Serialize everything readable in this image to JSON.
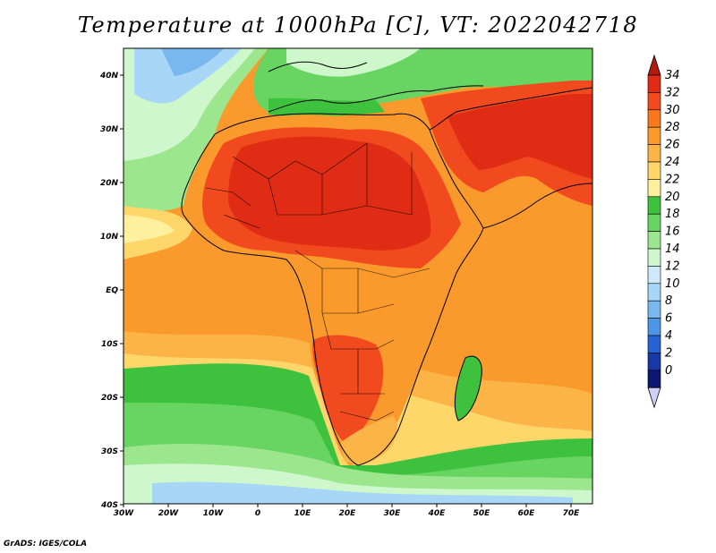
{
  "title": "Temperature at 1000hPa [C], VT: 2022042718",
  "credit": "GrADS: IGES/COLA",
  "map": {
    "region": "Africa",
    "variable": "Temperature at 1000hPa",
    "units": "C",
    "lon_range": [
      -30,
      75
    ],
    "lat_range": [
      -40,
      45
    ]
  },
  "axes": {
    "x_ticks": [
      "30W",
      "20W",
      "10W",
      "0",
      "10E",
      "20E",
      "30E",
      "40E",
      "50E",
      "60E",
      "70E"
    ],
    "y_ticks": [
      "40N",
      "30N",
      "20N",
      "10N",
      "EQ",
      "10S",
      "20S",
      "30S",
      "40S"
    ]
  },
  "colorbar": {
    "labels": [
      "34",
      "32",
      "30",
      "28",
      "26",
      "24",
      "22",
      "20",
      "18",
      "16",
      "14",
      "12",
      "10",
      "8",
      "6",
      "4",
      "2",
      "0"
    ],
    "colors": [
      "#e02c14",
      "#f04a1e",
      "#f8781e",
      "#fa9a2c",
      "#fcb446",
      "#fed66a",
      "#fef09e",
      "#3ec23e",
      "#68d462",
      "#9ce68e",
      "#cef8cc",
      "#cde9fa",
      "#a8d6f6",
      "#78b8ee",
      "#4d96e6",
      "#2862d0",
      "#1838a6",
      "#0c1870"
    ],
    "top_color": "#b31a0f",
    "bottom_color": "#cfd0f8"
  }
}
